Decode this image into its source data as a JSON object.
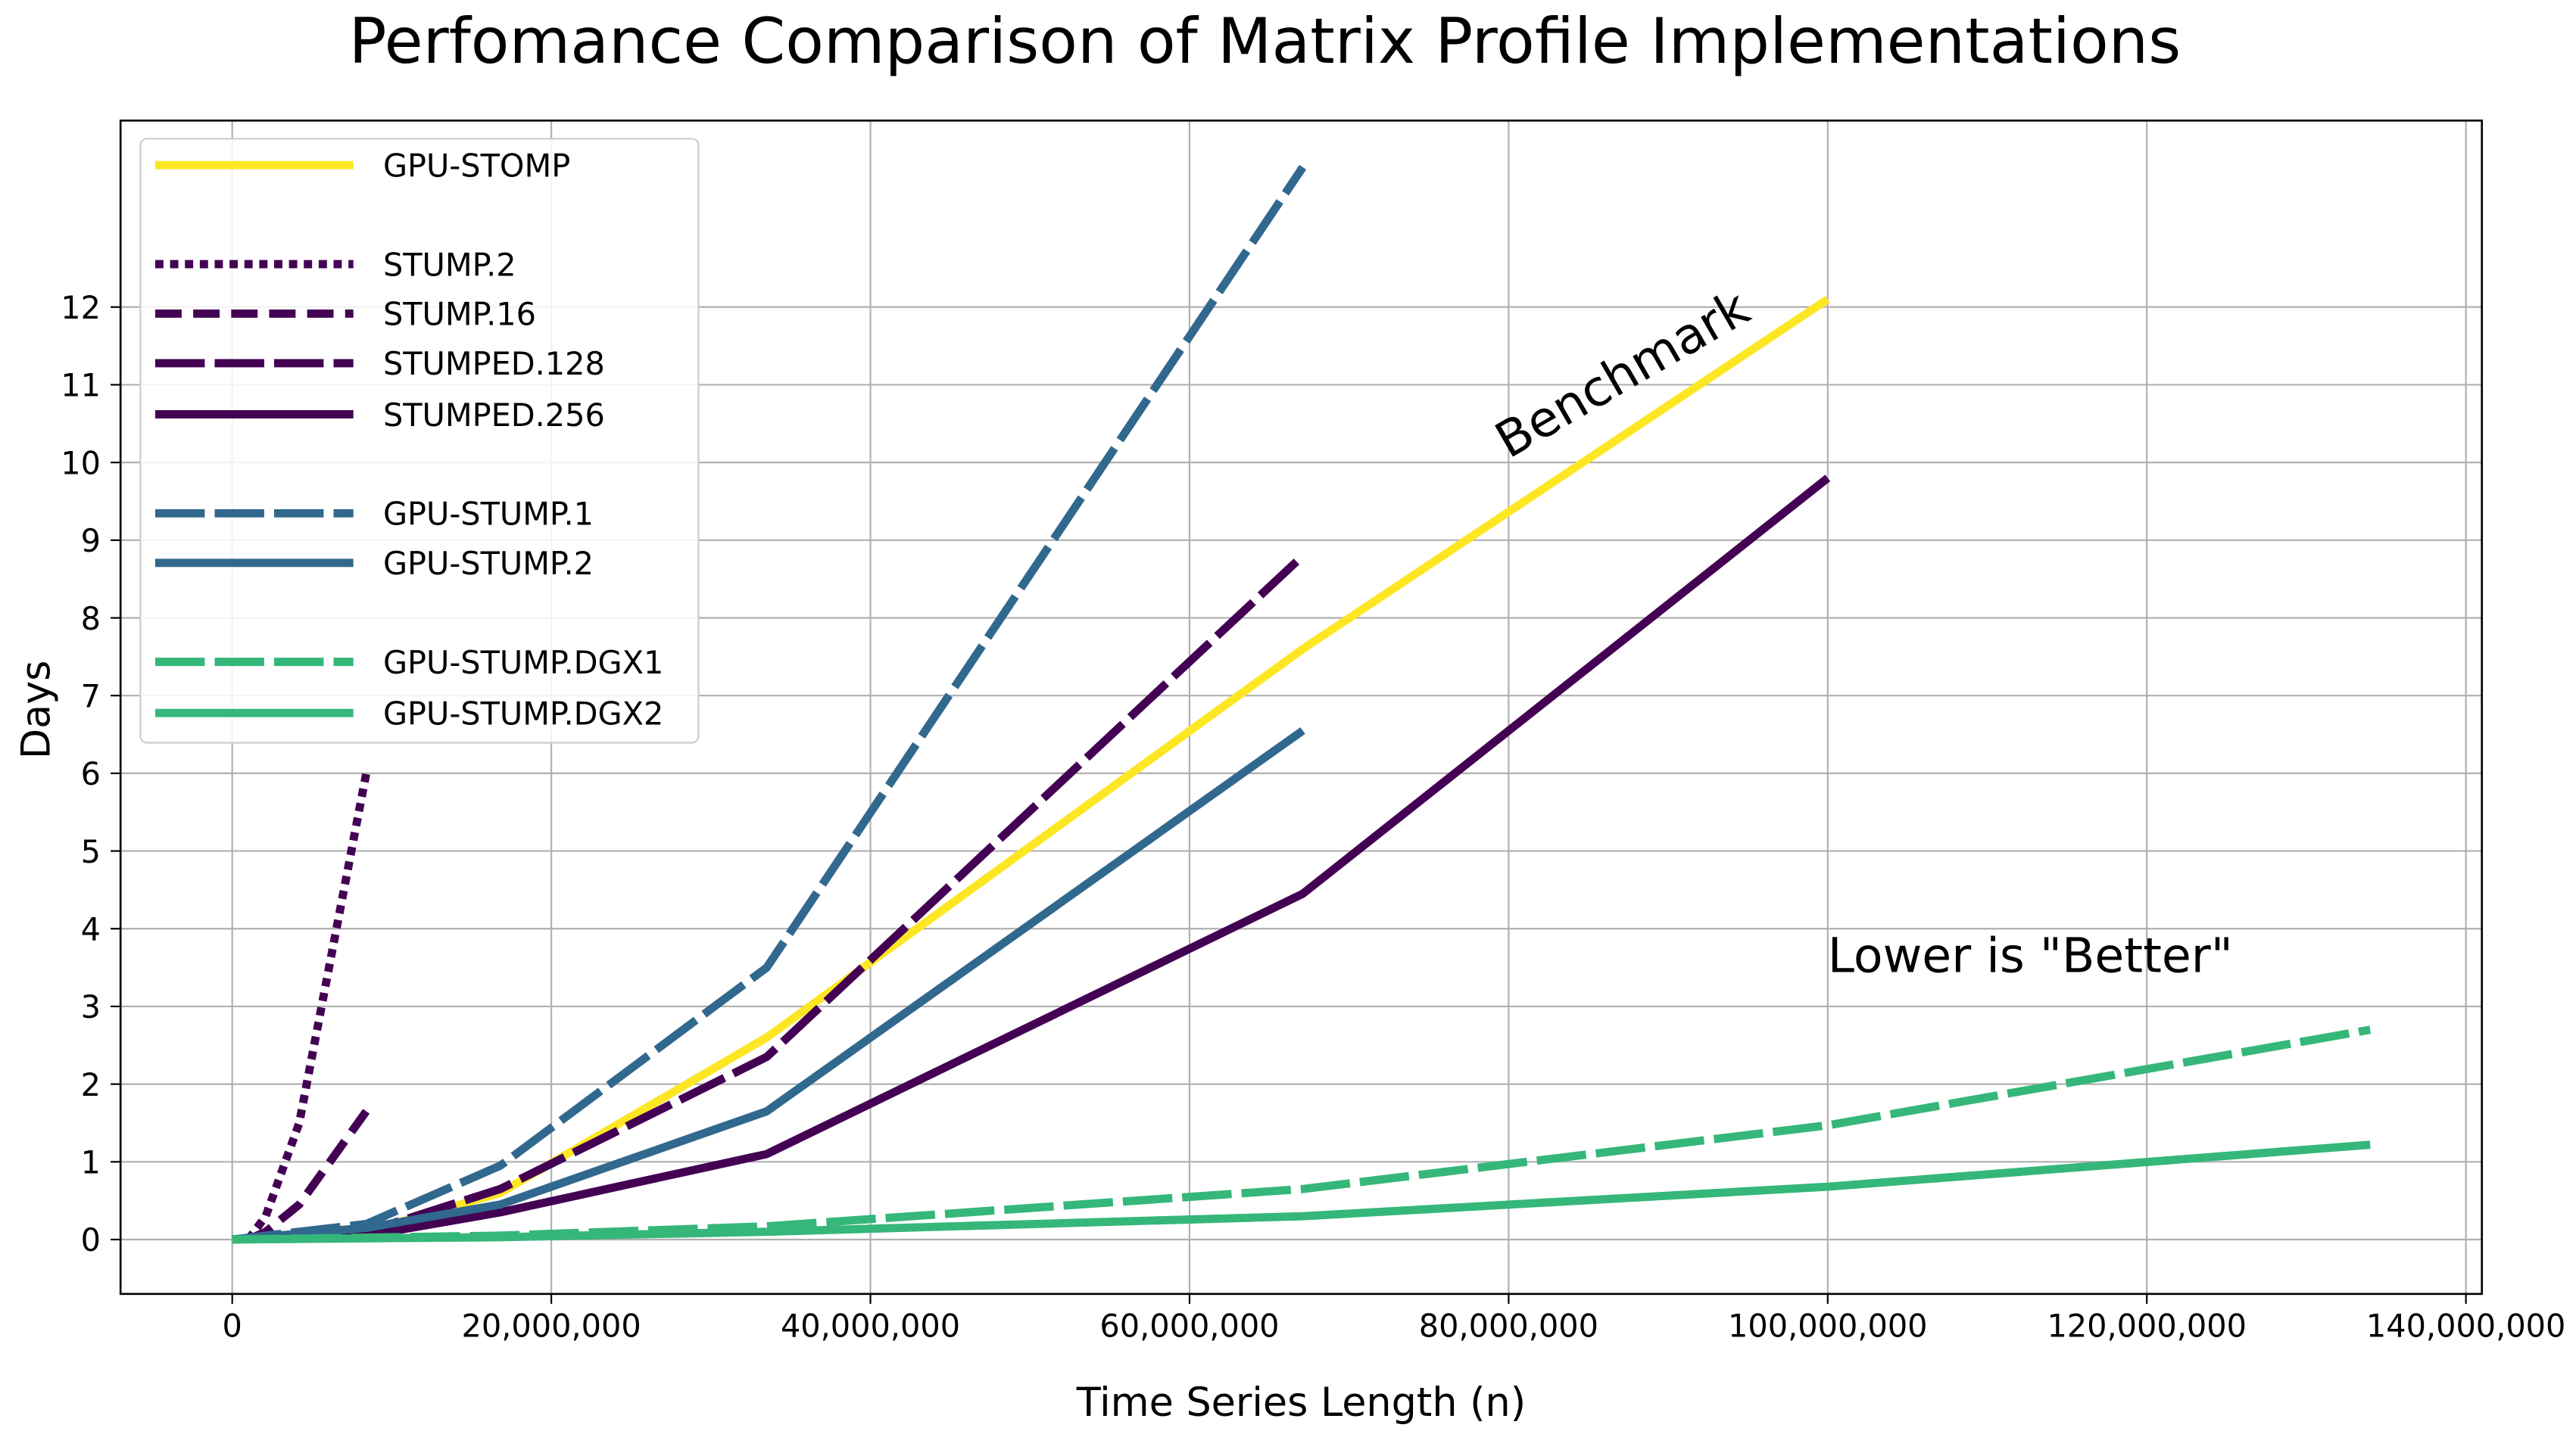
{
  "chart_data": {
    "type": "line",
    "title": "Perfomance Comparison of Matrix Profile Implementations",
    "xlabel": "Time Series Length (n)",
    "ylabel": "Days",
    "xlim": [
      -7000000,
      141000000
    ],
    "ylim": [
      -0.7,
      14.4
    ],
    "xticks": [
      0,
      20000000,
      40000000,
      60000000,
      80000000,
      100000000,
      120000000,
      140000000
    ],
    "xtick_labels": [
      "0",
      "20,000,000",
      "40,000,000",
      "60,000,000",
      "80,000,000",
      "100,000,000",
      "120,000,000",
      "140,000,000"
    ],
    "yticks": [
      0,
      1,
      2,
      3,
      4,
      5,
      6,
      7,
      8,
      9,
      10,
      11,
      12
    ],
    "ytick_labels": [
      "0",
      "1",
      "2",
      "3",
      "4",
      "5",
      "6",
      "7",
      "8",
      "9",
      "10",
      "11",
      "12"
    ],
    "grid": true,
    "legend_placement": "upper-left",
    "annotations": [
      {
        "text": "Benchmark",
        "x": 80000000,
        "y": 10.0,
        "rotation": 30
      },
      {
        "text": "Lower is \"Better\"",
        "x": 100000000,
        "y": 3.4,
        "rotation": 0
      }
    ],
    "series": [
      {
        "name": "GPU-STOMP",
        "color": "#fde725",
        "style": "solid",
        "x": [
          0,
          8400000,
          16800000,
          33500000,
          67100000,
          100000000
        ],
        "y": [
          0,
          0.1,
          0.6,
          2.6,
          7.6,
          12.1
        ]
      },
      {
        "name": "STUMP.2",
        "color": "#440154",
        "style": "dotted",
        "x": [
          1000000,
          2100000,
          4200000,
          8400000
        ],
        "y": [
          0,
          0.3,
          1.5,
          6.0
        ]
      },
      {
        "name": "STUMP.16",
        "color": "#440154",
        "style": "dashed",
        "x": [
          1000000,
          2100000,
          4200000,
          8400000
        ],
        "y": [
          0,
          0.1,
          0.45,
          1.65
        ]
      },
      {
        "name": "STUMPED.128",
        "color": "#440154",
        "style": "longdash",
        "x": [
          0,
          8400000,
          16800000,
          33500000,
          67100000
        ],
        "y": [
          0,
          0.1,
          0.65,
          2.35,
          8.8
        ]
      },
      {
        "name": "STUMPED.256",
        "color": "#440154",
        "style": "solid",
        "x": [
          0,
          8400000,
          16800000,
          33500000,
          67100000,
          100000000
        ],
        "y": [
          0,
          0.05,
          0.35,
          1.1,
          4.45,
          9.8
        ]
      },
      {
        "name": "GPU-STUMP.1",
        "color": "#31688e",
        "style": "longdash",
        "x": [
          0,
          8400000,
          16800000,
          33500000,
          67100000
        ],
        "y": [
          0,
          0.2,
          0.95,
          3.5,
          13.8
        ]
      },
      {
        "name": "GPU-STUMP.2",
        "color": "#31688e",
        "style": "solid",
        "x": [
          0,
          8400000,
          16800000,
          33500000,
          67100000
        ],
        "y": [
          0,
          0.15,
          0.45,
          1.65,
          6.55
        ]
      },
      {
        "name": "GPU-STUMP.DGX1",
        "color": "#35b779",
        "style": "longdash",
        "x": [
          0,
          16800000,
          33500000,
          67100000,
          100000000,
          134000000
        ],
        "y": [
          0,
          0.05,
          0.17,
          0.65,
          1.47,
          2.7
        ]
      },
      {
        "name": "GPU-STUMP.DGX2",
        "color": "#35b779",
        "style": "solid",
        "x": [
          0,
          16800000,
          33500000,
          67100000,
          100000000,
          134000000
        ],
        "y": [
          0,
          0.03,
          0.1,
          0.3,
          0.68,
          1.22
        ]
      }
    ]
  }
}
